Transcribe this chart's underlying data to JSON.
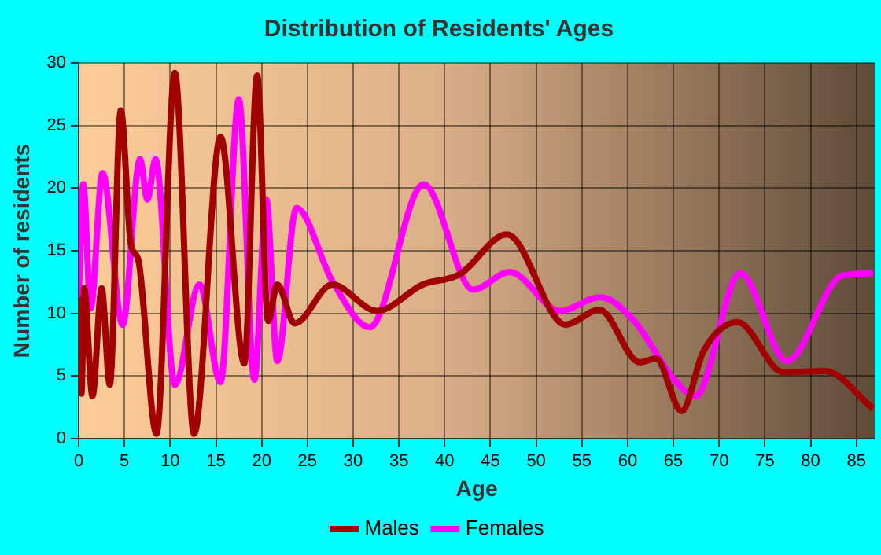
{
  "chart_data": {
    "type": "line",
    "title": "Distribution of Residents' Ages",
    "xlabel": "Age",
    "ylabel": "Number of residents",
    "xlim": [
      0,
      87
    ],
    "xticks": [
      0,
      5,
      10,
      15,
      20,
      25,
      30,
      35,
      40,
      45,
      50,
      55,
      60,
      65,
      70,
      75,
      80,
      85
    ],
    "ylim": [
      0,
      30
    ],
    "yticks": [
      0,
      5,
      10,
      15,
      20,
      25,
      30
    ],
    "grid": true,
    "legend": "bottom",
    "marker": "none",
    "line_style": "solid",
    "series": [
      {
        "name": "Males",
        "color": "#a00000",
        "x": [
          0,
          0.3,
          0.6,
          1.5,
          2.5,
          3.4,
          4.6,
          5.7,
          6.5,
          8.5,
          10.5,
          12.6,
          15.5,
          18.1,
          19.5,
          20.7,
          21.7,
          23.6,
          27.7,
          32.6,
          37.6,
          41.6,
          46.8,
          53.2,
          56.9,
          61.3,
          63.1,
          65.9,
          68.3,
          72,
          77,
          81.6,
          86.8
        ],
        "values": [
          11.3,
          3.6,
          12,
          3.4,
          12,
          4.3,
          26.2,
          15.5,
          14.3,
          0.4,
          29.2,
          0.4,
          24.1,
          6,
          29,
          9.4,
          12.3,
          9.2,
          12.3,
          10.2,
          12.3,
          13.1,
          16.3,
          9.1,
          10.3,
          6.1,
          6.4,
          2.2,
          7,
          9.3,
          5.3,
          5.4,
          2.4
        ]
      },
      {
        "name": "Females",
        "color": "#ff00ff",
        "x": [
          0,
          0.5,
          1.3,
          2.6,
          4.8,
          6.7,
          7.5,
          8.4,
          10.5,
          13.2,
          15.5,
          17.5,
          19.2,
          20.5,
          21.7,
          23.8,
          27.7,
          31.8,
          37.7,
          43.1,
          47.1,
          52.6,
          57,
          60.7,
          65.1,
          67.4,
          72.3,
          77.4,
          83.4,
          86.8
        ],
        "values": [
          11.3,
          20.3,
          10.4,
          21.2,
          9.1,
          22.3,
          19.1,
          22.3,
          4.3,
          12.3,
          4.5,
          27.1,
          4.7,
          19.1,
          6.2,
          18.4,
          12.6,
          8.9,
          20.3,
          11.9,
          13.3,
          10.2,
          11.3,
          9.4,
          4.7,
          3.4,
          13.2,
          6.2,
          13,
          13.2
        ]
      }
    ]
  }
}
